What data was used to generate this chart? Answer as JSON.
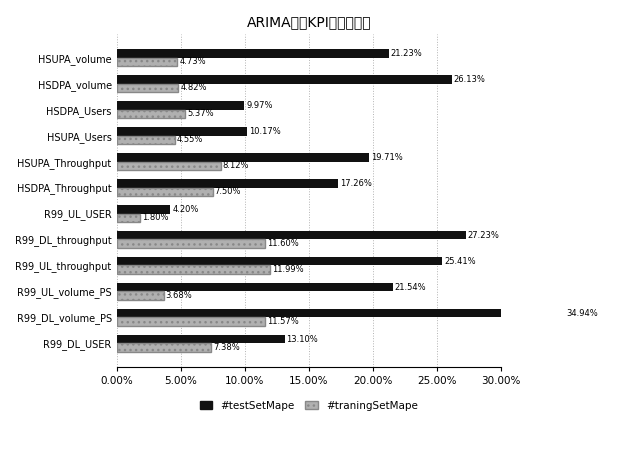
{
  "title": "ARIMA算法KPI综合误差率",
  "categories": [
    "HSUPA_volume",
    "HSDPA_volume",
    "HSDPA_Users",
    "HSUPA_Users",
    "HSUPA_Throughput",
    "HSDPA_Throughput",
    "R99_UL_USER",
    "R99_DL_throughput",
    "R99_UL_throughput",
    "R99_UL_volume_PS",
    "R99_DL_volume_PS",
    "R99_DL_USER"
  ],
  "test_values": [
    21.23,
    26.13,
    9.97,
    10.17,
    19.71,
    17.26,
    4.2,
    27.23,
    25.41,
    21.54,
    34.94,
    13.1
  ],
  "train_values": [
    4.73,
    4.82,
    5.37,
    4.55,
    8.12,
    7.5,
    1.8,
    11.6,
    11.99,
    3.68,
    11.57,
    7.38
  ],
  "test_labels": [
    "21.23%",
    "26.13%",
    "9.97%",
    "10.17%",
    "19.71%",
    "17.26%",
    "4.20%",
    "27.23%",
    "25.41%",
    "21.54%",
    "34.94%",
    "13.10%"
  ],
  "train_labels": [
    "4.73%",
    "4.82%",
    "5.37%",
    "4.55%",
    "8.12%",
    "7.50%",
    "1.80%",
    "11.60%",
    "11.99%",
    "3.68%",
    "11.57%",
    "7.38%"
  ],
  "test_color": "#111111",
  "train_color": "#b0b0b0",
  "xlim": [
    0,
    30
  ],
  "xticks": [
    0,
    5,
    10,
    15,
    20,
    25,
    30
  ],
  "xtick_labels": [
    "0.00%",
    "5.00%",
    "10.00%",
    "15.00%",
    "20.00%",
    "25.00%",
    "30.00%"
  ],
  "legend_test": "#testSetMape",
  "legend_train": "#traningSetMape",
  "bar_height": 0.32,
  "figsize": [
    6.31,
    4.61
  ],
  "dpi": 100
}
